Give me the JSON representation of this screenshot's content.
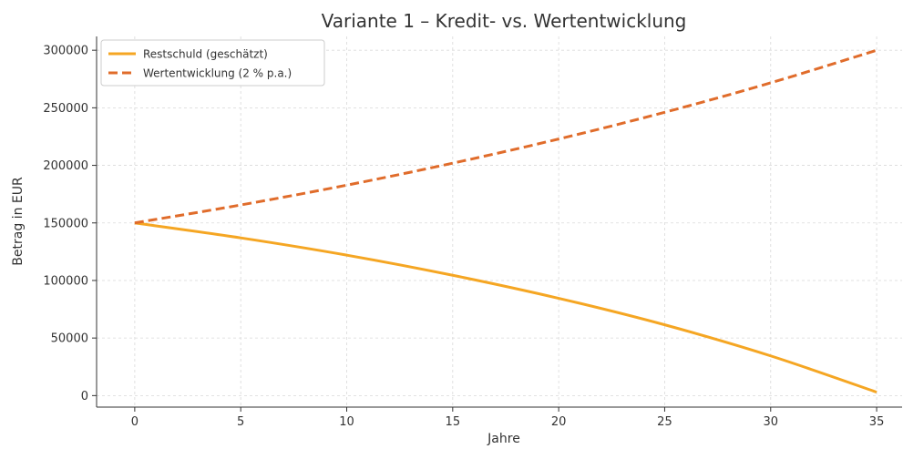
{
  "chart_data": {
    "type": "line",
    "title": "Variante 1 – Kredit- vs. Wertentwicklung",
    "xlabel": "Jahre",
    "ylabel": "Betrag in EUR",
    "xlim": [
      -1.8,
      36.2
    ],
    "ylim": [
      -10000,
      312000
    ],
    "xticks": [
      0,
      5,
      10,
      15,
      20,
      25,
      30,
      35
    ],
    "yticks": [
      0,
      50000,
      100000,
      150000,
      200000,
      250000,
      300000
    ],
    "grid": true,
    "legend_position": "top-left",
    "series": [
      {
        "name": "Restschuld (geschätzt)",
        "color": "#f5a623",
        "style": "solid",
        "x": [
          0,
          5,
          10,
          15,
          20,
          25,
          30,
          35
        ],
        "y": [
          150000,
          137000,
          122000,
          104500,
          84500,
          61500,
          34500,
          3000
        ]
      },
      {
        "name": "Wertentwicklung (2 % p.a.)",
        "color": "#e06c2b",
        "style": "dashed",
        "x": [
          0,
          5,
          10,
          15,
          20,
          25,
          30,
          35
        ],
        "y": [
          150000,
          165600,
          182800,
          201900,
          222900,
          246100,
          271700,
          300000
        ]
      }
    ]
  }
}
